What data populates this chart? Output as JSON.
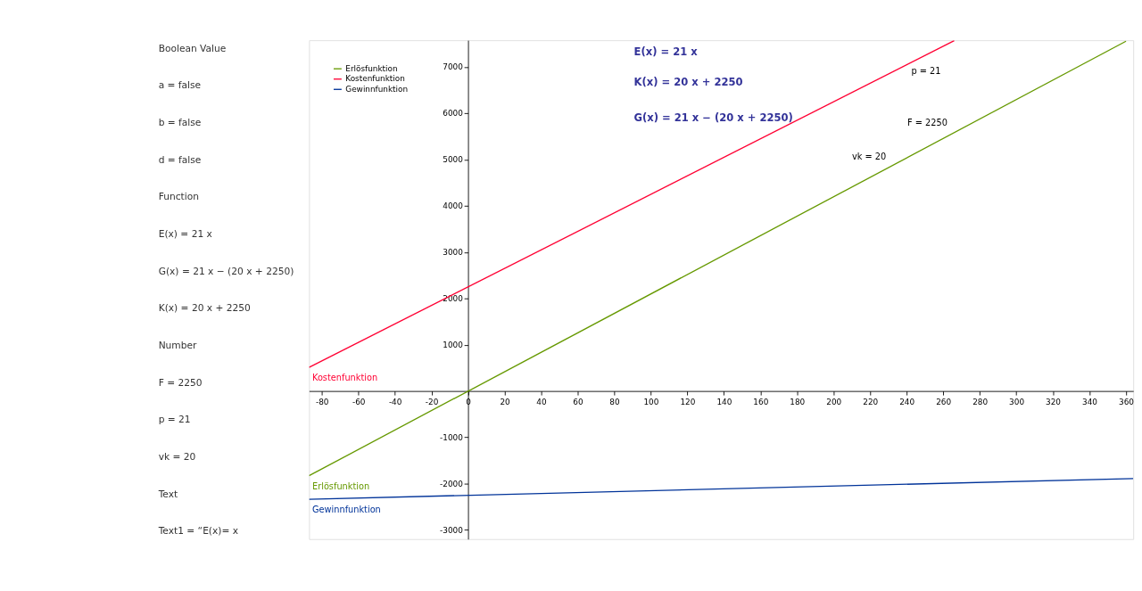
{
  "chart_data": {
    "type": "line",
    "xlim": [
      -87,
      364
    ],
    "ylim": [
      -3200,
      7580
    ],
    "xticks": [
      -80,
      -60,
      -40,
      -20,
      0,
      20,
      40,
      60,
      80,
      100,
      120,
      140,
      160,
      180,
      200,
      220,
      240,
      260,
      280,
      300,
      320,
      340,
      360
    ],
    "yticks": [
      -3000,
      -2000,
      -1000,
      1000,
      2000,
      3000,
      4000,
      5000,
      6000,
      7000
    ],
    "legend": "top left",
    "series": [
      {
        "name": "Erlösfunktion",
        "color": "#669900",
        "x": [
          -87,
          360
        ],
        "values": [
          -1830,
          7560
        ]
      },
      {
        "name": "Kostenfunktion",
        "color": "#ff0033",
        "x": [
          -87,
          266
        ],
        "values": [
          510,
          7570
        ]
      },
      {
        "name": "Gewinnfunktion",
        "color": "#003399",
        "x": [
          -87,
          364
        ],
        "values": [
          -2340,
          -1890
        ]
      }
    ],
    "annotations": [
      "Boolean Value",
      "a = false",
      "b = false",
      "d = false",
      "Function",
      "E(x) = 21 x",
      "G(x) = 21 x − (20 x + 2250)",
      "K(x) = 20 x + 2250",
      "Number",
      "F = 2250",
      "p = 21",
      "vk = 20",
      "Text",
      "Text1 = “E(x)= x",
      "E(x) = 21 x",
      "K(x) = 20 x + 2250",
      "G(x) = 21 x − (20 x + 2250)",
      "p = 21",
      "F = 2250",
      "vk = 20"
    ]
  }
}
